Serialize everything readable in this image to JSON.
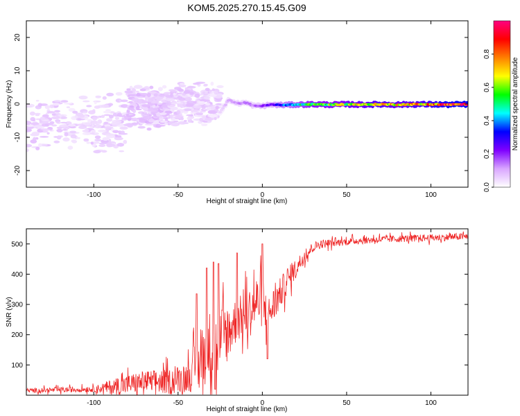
{
  "figure": {
    "title": "KOM5.2025.270.15.45.G09"
  },
  "chart_data": [
    {
      "type": "heatmap",
      "xlabel": "Height of straight line (km)",
      "ylabel": "Frequency (Hz)",
      "xlim": [
        -140,
        122
      ],
      "ylim": [
        -25,
        25
      ],
      "xticks": [
        -100,
        -50,
        0,
        50,
        100
      ],
      "yticks": [
        -20,
        -10,
        0,
        10,
        20
      ],
      "colorbar": {
        "label": "Normalized spectral amplitude",
        "range": [
          0,
          1
        ],
        "ticks": [
          "0.0",
          "0.2",
          "0.4",
          "0.6",
          "0.8"
        ],
        "tick_values": [
          0,
          0.2,
          0.4,
          0.6,
          0.8
        ],
        "colors": [
          "#ffffff",
          "#d9a6ff",
          "#7f00ff",
          "#0000ff",
          "#00ffff",
          "#00ff00",
          "#ffff00",
          "#ff8000",
          "#ff0000",
          "#ff0080"
        ]
      },
      "ridge": [
        {
          "x": -25,
          "f": -2.5,
          "amp": 0.05
        },
        {
          "x": -20,
          "f": 1.2,
          "amp": 0.1
        },
        {
          "x": -15,
          "f": 0.2,
          "amp": 0.12
        },
        {
          "x": -10,
          "f": 0.4,
          "amp": 0.14
        },
        {
          "x": -5,
          "f": -0.5,
          "amp": 0.15
        },
        {
          "x": 0,
          "f": -0.6,
          "amp": 0.2
        },
        {
          "x": 5,
          "f": -0.2,
          "amp": 0.25
        },
        {
          "x": 10,
          "f": -0.3,
          "amp": 0.35
        },
        {
          "x": 20,
          "f": -0.2,
          "amp": 0.45
        },
        {
          "x": 30,
          "f": -0.1,
          "amp": 0.6
        },
        {
          "x": 40,
          "f": -0.2,
          "amp": 0.6
        },
        {
          "x": 50,
          "f": -0.1,
          "amp": 0.65
        },
        {
          "x": 60,
          "f": -0.2,
          "amp": 0.7
        },
        {
          "x": 70,
          "f": -0.1,
          "amp": 0.75
        },
        {
          "x": 80,
          "f": -0.2,
          "amp": 0.7
        },
        {
          "x": 90,
          "f": -0.1,
          "amp": 0.75
        },
        {
          "x": 100,
          "f": -0.1,
          "amp": 0.8
        },
        {
          "x": 110,
          "f": -0.2,
          "amp": 0.9
        },
        {
          "x": 120,
          "f": -0.1,
          "amp": 0.95
        }
      ],
      "scatter_regions": [
        {
          "x_range": [
            -140,
            -80
          ],
          "f_center": -6,
          "f_spread": 7,
          "amp": 0.06
        },
        {
          "x_range": [
            -80,
            -55
          ],
          "f_center": -1,
          "f_spread": 5,
          "amp": 0.07
        },
        {
          "x_range": [
            -55,
            -25
          ],
          "f_center": 0,
          "f_spread": 5,
          "amp": 0.06
        }
      ]
    },
    {
      "type": "line",
      "xlabel": "Height of straight line (km)",
      "ylabel": "SNR (v/v)",
      "xlim": [
        -140,
        122
      ],
      "ylim": [
        0,
        550
      ],
      "xticks": [
        -100,
        -50,
        0,
        50,
        100
      ],
      "yticks": [
        100,
        200,
        300,
        400,
        500
      ],
      "line_color": "#ee2222",
      "series": [
        {
          "name": "SNR",
          "trend_x": [
            -140,
            -100,
            -85,
            -70,
            -55,
            -45,
            -38,
            -32,
            -28,
            -22,
            -15,
            -8,
            -5,
            0,
            3,
            5,
            10,
            15,
            20,
            25,
            30,
            35,
            45,
            55,
            70,
            85,
            100,
            110,
            122
          ],
          "trend_y": [
            15,
            20,
            30,
            45,
            45,
            60,
            100,
            170,
            150,
            200,
            250,
            270,
            300,
            320,
            240,
            280,
            330,
            380,
            420,
            460,
            490,
            500,
            505,
            510,
            515,
            518,
            520,
            522,
            525
          ],
          "noise_x": [
            -140,
            -100,
            -85,
            -60,
            -45,
            -35,
            -25,
            -15,
            0,
            5,
            20,
            30,
            45,
            122
          ],
          "noise_amp": [
            10,
            12,
            40,
            50,
            60,
            140,
            150,
            90,
            120,
            80,
            40,
            20,
            15,
            15
          ],
          "spikes": [
            {
              "x": -39,
              "y": 335
            },
            {
              "x": -33,
              "y": 420
            },
            {
              "x": -29,
              "y": 440
            },
            {
              "x": -26,
              "y": 435
            },
            {
              "x": -15,
              "y": 470
            },
            {
              "x": 0,
              "y": 500
            },
            {
              "x": 3,
              "y": 120
            },
            {
              "x": -28,
              "y": 20
            }
          ]
        }
      ]
    }
  ]
}
